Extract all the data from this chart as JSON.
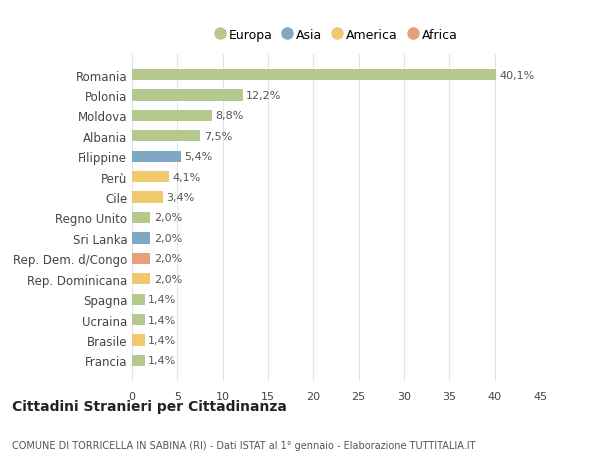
{
  "countries": [
    "Romania",
    "Polonia",
    "Moldova",
    "Albania",
    "Filippine",
    "Perù",
    "Cile",
    "Regno Unito",
    "Sri Lanka",
    "Rep. Dem. d/Congo",
    "Rep. Dominicana",
    "Spagna",
    "Ucraina",
    "Brasile",
    "Francia"
  ],
  "values": [
    40.1,
    12.2,
    8.8,
    7.5,
    5.4,
    4.1,
    3.4,
    2.0,
    2.0,
    2.0,
    2.0,
    1.4,
    1.4,
    1.4,
    1.4
  ],
  "labels": [
    "40,1%",
    "12,2%",
    "8,8%",
    "7,5%",
    "5,4%",
    "4,1%",
    "3,4%",
    "2,0%",
    "2,0%",
    "2,0%",
    "2,0%",
    "1,4%",
    "1,4%",
    "1,4%",
    "1,4%"
  ],
  "continents": [
    "Europa",
    "Europa",
    "Europa",
    "Europa",
    "Asia",
    "America",
    "America",
    "Europa",
    "Asia",
    "Africa",
    "America",
    "Europa",
    "Europa",
    "America",
    "Europa"
  ],
  "colors": {
    "Europa": "#b5c98e",
    "Asia": "#7ea8c4",
    "America": "#f0c96e",
    "Africa": "#e8a07a"
  },
  "legend_order": [
    "Europa",
    "Asia",
    "America",
    "Africa"
  ],
  "title": "Cittadini Stranieri per Cittadinanza",
  "subtitle": "COMUNE DI TORRICELLA IN SABINA (RI) - Dati ISTAT al 1° gennaio - Elaborazione TUTTITALIA.IT",
  "xlim": [
    0,
    45
  ],
  "xticks": [
    0,
    5,
    10,
    15,
    20,
    25,
    30,
    35,
    40,
    45
  ],
  "background_color": "#ffffff",
  "grid_color": "#e5e5e5",
  "bar_height": 0.55,
  "label_fontsize": 8.0,
  "ytick_fontsize": 8.5,
  "xtick_fontsize": 8.0,
  "legend_fontsize": 9.0,
  "title_fontsize": 10.0,
  "subtitle_fontsize": 7.0
}
